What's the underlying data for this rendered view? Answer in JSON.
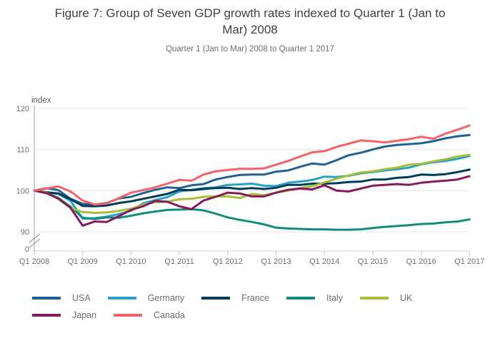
{
  "header": {
    "title": "Figure 7: Group of Seven GDP growth rates indexed to Quarter 1 (Jan to Mar) 2008",
    "subtitle": "Quarter 1 (Jan to Mar) 2008 to Quarter 1 2017"
  },
  "chart_data": {
    "type": "line",
    "title": "Figure 7: Group of Seven GDP growth rates indexed to Quarter 1 (Jan to Mar) 2008",
    "subtitle": "Quarter 1 (Jan to Mar) 2008 to Quarter 1 2017",
    "ylabel": "index",
    "index_base": "Quarter 1 2008 = 100",
    "ylim": [
      87,
      120
    ],
    "y_ticks": [
      120,
      110,
      100,
      90
    ],
    "y_tick_labels": [
      "120",
      "110",
      "100",
      "90",
      "0"
    ],
    "axis_break": true,
    "grid": true,
    "legend_position": "bottom",
    "x_tick_labels": [
      "Q1 2008",
      "Q1 2009",
      "Q1 2010",
      "Q1 2011",
      "Q1 2012",
      "Q1 2013",
      "Q1 2014",
      "Q1 2015",
      "Q1 2016",
      "Q1 2017"
    ],
    "x": [
      "2008 Q1",
      "2008 Q2",
      "2008 Q3",
      "2008 Q4",
      "2009 Q1",
      "2009 Q2",
      "2009 Q3",
      "2009 Q4",
      "2010 Q1",
      "2010 Q2",
      "2010 Q3",
      "2010 Q4",
      "2011 Q1",
      "2011 Q2",
      "2011 Q3",
      "2011 Q4",
      "2012 Q1",
      "2012 Q2",
      "2012 Q3",
      "2012 Q4",
      "2013 Q1",
      "2013 Q2",
      "2013 Q3",
      "2013 Q4",
      "2014 Q1",
      "2014 Q2",
      "2014 Q3",
      "2014 Q4",
      "2015 Q1",
      "2015 Q2",
      "2015 Q3",
      "2015 Q4",
      "2016 Q1",
      "2016 Q2",
      "2016 Q3",
      "2016 Q4",
      "2017 Q1"
    ],
    "series": [
      {
        "name": "USA",
        "color": "#206095",
        "values": [
          100,
          100.6,
          100.1,
          98,
          96.8,
          96.6,
          97,
          98.1,
          98.5,
          99.4,
          100.2,
          100.8,
          100.6,
          101.3,
          101.6,
          102.7,
          103.3,
          103.8,
          103.9,
          103.9,
          104.6,
          104.9,
          105.8,
          106.6,
          106.3,
          107.4,
          108.6,
          109.2,
          110,
          110.7,
          111.1,
          111.3,
          111.5,
          112,
          112.7,
          113.2,
          113.5
        ]
      },
      {
        "name": "Germany",
        "color": "#27a0cc",
        "values": [
          100,
          99.5,
          99.2,
          97.5,
          93.2,
          93.3,
          93.7,
          94.3,
          95.1,
          96.9,
          97.7,
          98.4,
          99.8,
          100.2,
          100.6,
          100.8,
          101.4,
          101.5,
          101.7,
          101.2,
          101.1,
          101.9,
          102.2,
          102.6,
          103.4,
          103.3,
          103.6,
          104.2,
          104.5,
          104.9,
          105.2,
          105.6,
          106.4,
          106.9,
          107.2,
          107.7,
          108.4
        ]
      },
      {
        "name": "France",
        "color": "#003c57",
        "values": [
          100,
          99.6,
          99.3,
          97.9,
          96.3,
          96.2,
          96.4,
          97,
          97.4,
          98,
          98.6,
          99.2,
          100.2,
          100.1,
          100.4,
          100.6,
          100.7,
          100.4,
          100.6,
          100.4,
          100.7,
          101.4,
          101.4,
          101.7,
          101.7,
          101.8,
          102.1,
          102.2,
          102.7,
          102.7,
          103.1,
          103.3,
          103.9,
          103.8,
          104,
          104.5,
          105.1
        ]
      },
      {
        "name": "Italy",
        "color": "#118c7b",
        "values": [
          100,
          99.4,
          98.2,
          96.1,
          93.4,
          93.1,
          93.5,
          93.4,
          93.9,
          94.5,
          94.9,
          95.3,
          95.4,
          95.5,
          95.2,
          94.4,
          93.5,
          92.9,
          92.4,
          91.8,
          91,
          90.8,
          90.7,
          90.6,
          90.6,
          90.5,
          90.5,
          90.6,
          90.9,
          91.2,
          91.4,
          91.6,
          91.9,
          92,
          92.3,
          92.5,
          93
        ]
      },
      {
        "name": "UK",
        "color": "#a8bd3a",
        "values": [
          100,
          99.5,
          97.9,
          95.8,
          94.8,
          94.6,
          94.7,
          95.1,
          95.6,
          96.6,
          97.2,
          97.3,
          97.9,
          98,
          98.5,
          98.6,
          98.6,
          98.2,
          99.2,
          98.9,
          99.5,
          100,
          100.6,
          101.1,
          102,
          102.9,
          103.7,
          104.4,
          104.7,
          105.2,
          105.6,
          106.3,
          106.5,
          107.1,
          107.6,
          108.3,
          108.7
        ]
      },
      {
        "name": "Japan",
        "color": "#871a5b",
        "values": [
          100,
          99.4,
          98.1,
          95.8,
          91.5,
          92.5,
          92.4,
          93.8,
          95.3,
          96.2,
          97.5,
          97.3,
          96.2,
          95.5,
          97.6,
          98.5,
          99.5,
          99.3,
          98.6,
          98.6,
          99.5,
          100.2,
          100.5,
          100.3,
          101.3,
          100,
          99.8,
          100.5,
          101.2,
          101.4,
          101.6,
          101.4,
          101.9,
          102.2,
          102.4,
          102.7,
          103.5
        ]
      },
      {
        "name": "Canada",
        "color": "#f66068",
        "values": [
          100,
          100.5,
          101,
          99.8,
          97.6,
          96.6,
          96.9,
          98.2,
          99.5,
          100.1,
          100.8,
          101.7,
          102.6,
          102.4,
          103.9,
          104.7,
          105,
          105.3,
          105.3,
          105.4,
          106.3,
          107.2,
          108.3,
          109.3,
          109.6,
          110.6,
          111.4,
          112.2,
          112,
          111.7,
          112.1,
          112.5,
          113.1,
          112.6,
          113.8,
          114.8,
          115.8
        ]
      }
    ]
  },
  "legend": {
    "rows": [
      [
        "USA",
        "Germany",
        "France",
        "Italy",
        "UK"
      ],
      [
        "Japan",
        "Canada"
      ]
    ]
  },
  "style": {
    "grid_color": "#e5e7e8",
    "y_axis_color": "#9da2a6",
    "x_axis_color": "#cdd1d4",
    "tick_color": "#b3c2cc",
    "axis_label_color": "#6d6e71",
    "break_mark_color": "#8c8c8c"
  }
}
